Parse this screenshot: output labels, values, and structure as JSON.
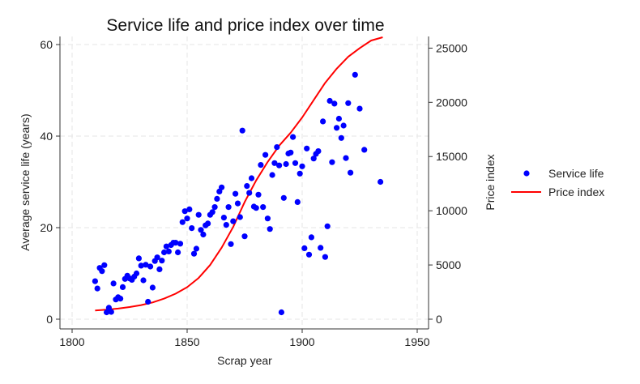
{
  "chart_data": {
    "type": "scatter",
    "title": "Service life and price index over time",
    "xlabel": "Scrap year",
    "ylabel": "Average service life (years)",
    "y2label": "Price index",
    "xlim": [
      1800,
      1950
    ],
    "ylim": [
      0,
      60
    ],
    "y2lim": [
      0,
      26000
    ],
    "xticks": [
      1800,
      1850,
      1900,
      1950
    ],
    "yticks": [
      0,
      20,
      40,
      60
    ],
    "y2ticks": [
      0,
      5000,
      10000,
      15000,
      20000,
      25000
    ],
    "grid": true,
    "legend_position": "right",
    "series": [
      {
        "name": "Service life",
        "kind": "scatter",
        "axis": "left",
        "color": "#0000ff",
        "points": [
          [
            1810,
            8.3
          ],
          [
            1811,
            6.7
          ],
          [
            1812,
            11.2
          ],
          [
            1813,
            10.5
          ],
          [
            1814,
            11.8
          ],
          [
            1815,
            1.5
          ],
          [
            1816,
            2.5
          ],
          [
            1816,
            1.8
          ],
          [
            1817,
            1.6
          ],
          [
            1818,
            7.8
          ],
          [
            1819,
            4.3
          ],
          [
            1820,
            4.8
          ],
          [
            1821,
            4.5
          ],
          [
            1822,
            7.0
          ],
          [
            1823,
            8.8
          ],
          [
            1824,
            9.5
          ],
          [
            1825,
            8.9
          ],
          [
            1826,
            8.6
          ],
          [
            1827,
            9.3
          ],
          [
            1828,
            10.0
          ],
          [
            1829,
            13.3
          ],
          [
            1830,
            11.7
          ],
          [
            1831,
            8.5
          ],
          [
            1832,
            11.9
          ],
          [
            1833,
            3.8
          ],
          [
            1834,
            11.5
          ],
          [
            1835,
            6.9
          ],
          [
            1836,
            12.7
          ],
          [
            1837,
            13.5
          ],
          [
            1838,
            10.9
          ],
          [
            1839,
            12.8
          ],
          [
            1840,
            14.6
          ],
          [
            1841,
            15.9
          ],
          [
            1842,
            14.8
          ],
          [
            1843,
            16.2
          ],
          [
            1844,
            16.7
          ],
          [
            1845,
            16.7
          ],
          [
            1846,
            14.6
          ],
          [
            1847,
            16.5
          ],
          [
            1848,
            21.2
          ],
          [
            1849,
            23.6
          ],
          [
            1850,
            22.0
          ],
          [
            1851,
            24.0
          ],
          [
            1852,
            19.9
          ],
          [
            1853,
            14.3
          ],
          [
            1854,
            15.4
          ],
          [
            1855,
            22.8
          ],
          [
            1856,
            19.5
          ],
          [
            1857,
            18.5
          ],
          [
            1858,
            20.5
          ],
          [
            1859,
            20.9
          ],
          [
            1860,
            22.8
          ],
          [
            1861,
            23.4
          ],
          [
            1862,
            24.5
          ],
          [
            1863,
            26.3
          ],
          [
            1864,
            27.9
          ],
          [
            1865,
            28.8
          ],
          [
            1866,
            22.2
          ],
          [
            1867,
            20.6
          ],
          [
            1868,
            24.5
          ],
          [
            1869,
            16.4
          ],
          [
            1870,
            21.4
          ],
          [
            1871,
            27.4
          ],
          [
            1872,
            25.3
          ],
          [
            1873,
            22.3
          ],
          [
            1874,
            41.2
          ],
          [
            1875,
            18.1
          ],
          [
            1876,
            29.1
          ],
          [
            1877,
            27.6
          ],
          [
            1878,
            30.8
          ],
          [
            1879,
            24.6
          ],
          [
            1880,
            24.3
          ],
          [
            1881,
            27.2
          ],
          [
            1882,
            33.7
          ],
          [
            1883,
            24.5
          ],
          [
            1884,
            35.9
          ],
          [
            1885,
            22.0
          ],
          [
            1886,
            19.7
          ],
          [
            1887,
            31.5
          ],
          [
            1888,
            34.1
          ],
          [
            1889,
            37.6
          ],
          [
            1890,
            33.6
          ],
          [
            1891,
            1.5
          ],
          [
            1892,
            26.5
          ],
          [
            1893,
            33.9
          ],
          [
            1894,
            36.2
          ],
          [
            1895,
            36.4
          ],
          [
            1896,
            39.8
          ],
          [
            1897,
            34.1
          ],
          [
            1898,
            25.6
          ],
          [
            1899,
            31.8
          ],
          [
            1900,
            33.4
          ],
          [
            1901,
            15.5
          ],
          [
            1902,
            37.3
          ],
          [
            1903,
            14.1
          ],
          [
            1904,
            17.9
          ],
          [
            1905,
            35.1
          ],
          [
            1906,
            36.1
          ],
          [
            1907,
            36.7
          ],
          [
            1908,
            15.6
          ],
          [
            1909,
            43.2
          ],
          [
            1910,
            13.6
          ],
          [
            1911,
            20.3
          ],
          [
            1912,
            47.7
          ],
          [
            1913,
            34.3
          ],
          [
            1914,
            47.1
          ],
          [
            1915,
            41.8
          ],
          [
            1916,
            43.8
          ],
          [
            1917,
            39.6
          ],
          [
            1918,
            42.3
          ],
          [
            1919,
            35.2
          ],
          [
            1920,
            47.2
          ],
          [
            1921,
            32.0
          ],
          [
            1923,
            53.4
          ],
          [
            1925,
            46.0
          ],
          [
            1927,
            37.0
          ],
          [
            1934,
            30.0
          ]
        ]
      },
      {
        "name": "Price index",
        "kind": "line",
        "axis": "right",
        "color": "#ff0000",
        "points": [
          [
            1810,
            800
          ],
          [
            1815,
            880
          ],
          [
            1820,
            980
          ],
          [
            1825,
            1120
          ],
          [
            1830,
            1300
          ],
          [
            1835,
            1550
          ],
          [
            1840,
            1900
          ],
          [
            1845,
            2350
          ],
          [
            1850,
            2950
          ],
          [
            1855,
            3800
          ],
          [
            1860,
            5000
          ],
          [
            1865,
            6600
          ],
          [
            1870,
            8500
          ],
          [
            1875,
            10800
          ],
          [
            1880,
            12800
          ],
          [
            1885,
            14500
          ],
          [
            1890,
            16000
          ],
          [
            1895,
            17200
          ],
          [
            1900,
            18600
          ],
          [
            1905,
            20200
          ],
          [
            1910,
            21800
          ],
          [
            1915,
            23100
          ],
          [
            1920,
            24200
          ],
          [
            1925,
            25000
          ],
          [
            1930,
            25700
          ],
          [
            1935,
            26000
          ]
        ]
      }
    ]
  }
}
